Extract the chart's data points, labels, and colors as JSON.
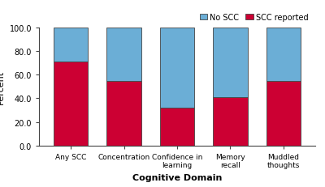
{
  "categories": [
    "Any SCC",
    "Concentration",
    "Confidence in\nlearning",
    "Memory\nrecall",
    "Muddled\nthoughts"
  ],
  "scc_reported": [
    71.0,
    55.0,
    32.0,
    41.0,
    55.0
  ],
  "no_scc": [
    29.0,
    45.0,
    68.0,
    59.0,
    45.0
  ],
  "color_scc": "#CC0033",
  "color_no_scc": "#6BAED6",
  "xlabel": "Cognitive Domain",
  "ylim": [
    0,
    100
  ],
  "yticks": [
    0.0,
    20.0,
    40.0,
    60.0,
    80.0,
    100.0
  ],
  "legend_labels": [
    "No SCC",
    "SCC reported"
  ],
  "bar_width": 0.65,
  "edge_color": "#444444",
  "background_color": "#ffffff"
}
